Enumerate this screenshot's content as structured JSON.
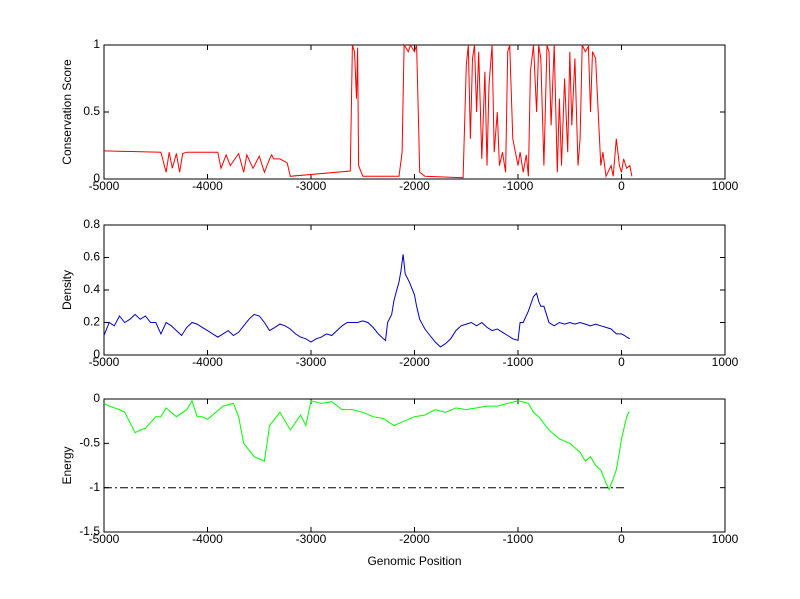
{
  "chart_data": [
    {
      "type": "line",
      "ylabel": "Conservation Score",
      "xlim": [
        -5000,
        1000
      ],
      "xticks": [
        -5000,
        -4000,
        -3000,
        -2000,
        -1000,
        0,
        1000
      ],
      "ylim": [
        0,
        1
      ],
      "yticks": [
        0,
        0.5,
        1
      ],
      "series": [
        {
          "color": "#ff0000",
          "x": [
            -5000,
            -4450,
            -4400,
            -4370,
            -4340,
            -4300,
            -4270,
            -4240,
            -4200,
            -3900,
            -3870,
            -3820,
            -3780,
            -3700,
            -3650,
            -3620,
            -3560,
            -3500,
            -3450,
            -3400,
            -3380,
            -3360,
            -3300,
            -3230,
            -3200,
            -2620,
            -2600,
            -2580,
            -2560,
            -2550,
            -2540,
            -2500,
            -2150,
            -2120,
            -2100,
            -2060,
            -2040,
            -2000,
            -1980,
            -1960,
            -1950,
            -1900,
            -1530,
            -1500,
            -1480,
            -1460,
            -1440,
            -1420,
            -1400,
            -1380,
            -1350,
            -1320,
            -1300,
            -1280,
            -1250,
            -1230,
            -1200,
            -1180,
            -1150,
            -1120,
            -1100,
            -1080,
            -1050,
            -1000,
            -980,
            -950,
            -920,
            -900,
            -880,
            -850,
            -820,
            -800,
            -780,
            -750,
            -720,
            -700,
            -680,
            -650,
            -620,
            -600,
            -580,
            -550,
            -520,
            -500,
            -480,
            -450,
            -420,
            -400,
            -380,
            -350,
            -320,
            -300,
            -280,
            -250,
            -200,
            -180,
            -150,
            -100,
            -80,
            -50,
            -20,
            0,
            20,
            50,
            80,
            100
          ],
          "values": [
            0.21,
            0.2,
            0.05,
            0.2,
            0.08,
            0.19,
            0.05,
            0.19,
            0.2,
            0.2,
            0.08,
            0.18,
            0.1,
            0.19,
            0.05,
            0.18,
            0.08,
            0.17,
            0.05,
            0.15,
            0.18,
            0.15,
            0.15,
            0.12,
            0.02,
            0.06,
            1,
            0.95,
            0.6,
            0.98,
            0.1,
            0.02,
            0.02,
            0.2,
            1,
            0.95,
            1,
            0.95,
            1,
            0.4,
            0.05,
            0.02,
            0.01,
            0.85,
            1,
            0.3,
            0.9,
            1,
            0.5,
            0.95,
            0.15,
            0.8,
            0.1,
            0.7,
            1,
            0.2,
            0.5,
            0.1,
            0.2,
            0.05,
            0.95,
            1,
            0.3,
            0.1,
            0.2,
            0.05,
            0.18,
            0.02,
            0.8,
            1,
            0.5,
            1,
            0.9,
            0.1,
            1,
            0.95,
            0.4,
            1,
            0.05,
            0.6,
            0.1,
            0.75,
            0.2,
            0.95,
            0.4,
            0.9,
            0.1,
            0.3,
            1,
            0.95,
            0.99,
            0.5,
            0.95,
            0.9,
            0.1,
            0.2,
            0.02,
            0.1,
            0.02,
            0.3,
            0.1,
            0.05,
            0.15,
            0.08,
            0.1,
            0.02
          ]
        }
      ]
    },
    {
      "type": "line",
      "ylabel": "Density",
      "xlim": [
        -5000,
        1000
      ],
      "xticks": [
        -5000,
        -4000,
        -3000,
        -2000,
        -1000,
        0,
        1000
      ],
      "ylim": [
        0,
        0.8
      ],
      "yticks": [
        0,
        0.2,
        0.4,
        0.6,
        0.8
      ],
      "series": [
        {
          "color": "#0000c0",
          "x": [
            -5000,
            -4950,
            -4900,
            -4850,
            -4800,
            -4750,
            -4700,
            -4650,
            -4600,
            -4550,
            -4500,
            -4450,
            -4400,
            -4350,
            -4300,
            -4250,
            -4200,
            -4150,
            -4100,
            -4050,
            -4000,
            -3950,
            -3900,
            -3850,
            -3800,
            -3750,
            -3700,
            -3650,
            -3600,
            -3550,
            -3500,
            -3450,
            -3400,
            -3350,
            -3300,
            -3250,
            -3200,
            -3150,
            -3100,
            -3050,
            -3000,
            -2950,
            -2900,
            -2850,
            -2800,
            -2750,
            -2700,
            -2650,
            -2600,
            -2550,
            -2500,
            -2450,
            -2400,
            -2350,
            -2300,
            -2280,
            -2260,
            -2220,
            -2200,
            -2180,
            -2150,
            -2130,
            -2110,
            -2090,
            -2050,
            -2000,
            -1980,
            -1950,
            -1900,
            -1850,
            -1800,
            -1750,
            -1700,
            -1650,
            -1600,
            -1550,
            -1500,
            -1450,
            -1400,
            -1350,
            -1300,
            -1250,
            -1200,
            -1150,
            -1100,
            -1050,
            -1000,
            -980,
            -950,
            -900,
            -850,
            -820,
            -800,
            -780,
            -750,
            -700,
            -650,
            -600,
            -550,
            -500,
            -450,
            -400,
            -350,
            -300,
            -250,
            -200,
            -150,
            -100,
            -50,
            0,
            30,
            50,
            80
          ],
          "values": [
            0.12,
            0.2,
            0.18,
            0.24,
            0.2,
            0.22,
            0.25,
            0.22,
            0.24,
            0.2,
            0.2,
            0.13,
            0.2,
            0.18,
            0.15,
            0.12,
            0.17,
            0.2,
            0.19,
            0.17,
            0.15,
            0.13,
            0.11,
            0.13,
            0.15,
            0.12,
            0.14,
            0.18,
            0.22,
            0.25,
            0.24,
            0.2,
            0.15,
            0.17,
            0.19,
            0.18,
            0.16,
            0.13,
            0.11,
            0.1,
            0.08,
            0.1,
            0.11,
            0.13,
            0.12,
            0.15,
            0.18,
            0.2,
            0.2,
            0.2,
            0.21,
            0.2,
            0.17,
            0.13,
            0.1,
            0.09,
            0.2,
            0.25,
            0.33,
            0.38,
            0.45,
            0.52,
            0.62,
            0.5,
            0.45,
            0.37,
            0.3,
            0.22,
            0.16,
            0.12,
            0.08,
            0.05,
            0.07,
            0.1,
            0.15,
            0.18,
            0.19,
            0.2,
            0.18,
            0.2,
            0.17,
            0.15,
            0.16,
            0.14,
            0.12,
            0.1,
            0.09,
            0.2,
            0.2,
            0.27,
            0.36,
            0.38,
            0.33,
            0.3,
            0.3,
            0.2,
            0.18,
            0.2,
            0.19,
            0.2,
            0.19,
            0.2,
            0.19,
            0.18,
            0.19,
            0.18,
            0.17,
            0.16,
            0.13,
            0.13,
            0.12,
            0.11,
            0.1
          ]
        }
      ]
    },
    {
      "type": "line",
      "ylabel": "Energy",
      "xlabel": "Genomic Position",
      "xlim": [
        -5000,
        1000
      ],
      "xticks": [
        -5000,
        -4000,
        -3000,
        -2000,
        -1000,
        0,
        1000
      ],
      "ylim": [
        -1.5,
        0
      ],
      "yticks": [
        -1.5,
        -1,
        -0.5,
        0
      ],
      "series": [
        {
          "color": "#00ff00",
          "x": [
            -5000,
            -4950,
            -4850,
            -4800,
            -4700,
            -4650,
            -4600,
            -4500,
            -4450,
            -4400,
            -4300,
            -4200,
            -4150,
            -4100,
            -4050,
            -4000,
            -3950,
            -3850,
            -3750,
            -3700,
            -3650,
            -3550,
            -3450,
            -3400,
            -3300,
            -3200,
            -3100,
            -3050,
            -3000,
            -2900,
            -2800,
            -2700,
            -2600,
            -2500,
            -2400,
            -2300,
            -2200,
            -2100,
            -2000,
            -1900,
            -1800,
            -1700,
            -1600,
            -1500,
            -1400,
            -1300,
            -1200,
            -1100,
            -1000,
            -900,
            -850,
            -800,
            -700,
            -650,
            -600,
            -500,
            -450,
            -400,
            -350,
            -300,
            -250,
            -200,
            -150,
            -120,
            -80,
            -50,
            -20,
            0,
            30,
            50,
            70,
            80
          ],
          "values": [
            -0.05,
            -0.08,
            -0.12,
            -0.15,
            -0.38,
            -0.35,
            -0.33,
            -0.2,
            -0.2,
            -0.1,
            -0.2,
            -0.12,
            -0.02,
            -0.2,
            -0.2,
            -0.23,
            -0.18,
            -0.08,
            -0.05,
            -0.2,
            -0.5,
            -0.65,
            -0.7,
            -0.3,
            -0.15,
            -0.35,
            -0.18,
            -0.3,
            -0.02,
            -0.05,
            -0.03,
            -0.12,
            -0.12,
            -0.15,
            -0.2,
            -0.22,
            -0.3,
            -0.25,
            -0.2,
            -0.18,
            -0.12,
            -0.15,
            -0.1,
            -0.12,
            -0.1,
            -0.08,
            -0.08,
            -0.05,
            -0.02,
            -0.05,
            -0.15,
            -0.2,
            -0.35,
            -0.4,
            -0.45,
            -0.5,
            -0.55,
            -0.6,
            -0.7,
            -0.65,
            -0.75,
            -0.8,
            -0.95,
            -1.02,
            -0.9,
            -0.8,
            -0.6,
            -0.45,
            -0.3,
            -0.2,
            -0.15,
            -0.15
          ]
        },
        {
          "color": "#000000",
          "style": "dashdot",
          "x": [
            -5000,
            50
          ],
          "values": [
            -1,
            -1
          ]
        }
      ]
    }
  ]
}
